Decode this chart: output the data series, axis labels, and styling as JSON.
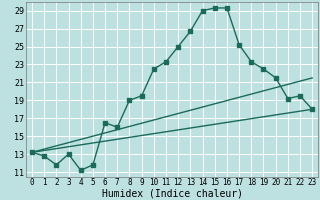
{
  "xlabel": "Humidex (Indice chaleur)",
  "bg_color": "#bde0e0",
  "grid_color": "#ffffff",
  "line_color": "#1a6b5a",
  "xlim": [
    -0.5,
    23.5
  ],
  "ylim": [
    10.5,
    30.0
  ],
  "xticks": [
    0,
    1,
    2,
    3,
    4,
    5,
    6,
    7,
    8,
    9,
    10,
    11,
    12,
    13,
    14,
    15,
    16,
    17,
    18,
    19,
    20,
    21,
    22,
    23
  ],
  "yticks": [
    11,
    13,
    15,
    17,
    19,
    21,
    23,
    25,
    27,
    29
  ],
  "line1_x": [
    0,
    1,
    2,
    3,
    4,
    5,
    6,
    7,
    8,
    9,
    10,
    11,
    12,
    13,
    14,
    15,
    16,
    17,
    18,
    19,
    20,
    21,
    22,
    23
  ],
  "line1_y": [
    13.2,
    12.8,
    11.8,
    13.0,
    11.2,
    11.8,
    16.5,
    16.0,
    19.0,
    19.5,
    22.5,
    23.3,
    25.0,
    26.7,
    29.0,
    29.3,
    29.3,
    25.2,
    23.3,
    22.5,
    21.5,
    19.2,
    19.5,
    18.0
  ],
  "line2_x": [
    0,
    23
  ],
  "line2_y": [
    13.2,
    18.0
  ],
  "line3_x": [
    0,
    23
  ],
  "line3_y": [
    13.2,
    21.5
  ],
  "marker_size": 2.5,
  "line_width": 1.0,
  "font_size_xlabel": 7,
  "font_size_tick": 6
}
